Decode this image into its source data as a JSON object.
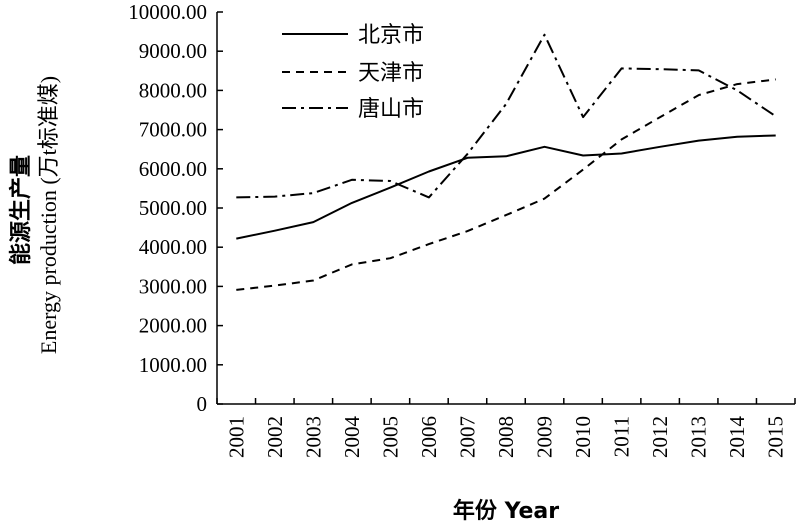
{
  "chart_data": {
    "type": "line",
    "x": [
      "2001",
      "2002",
      "2003",
      "2004",
      "2005",
      "2006",
      "2007",
      "2008",
      "2009",
      "2010",
      "2011",
      "2012",
      "2013",
      "2014",
      "2015"
    ],
    "series": [
      {
        "name": "北京市",
        "style": "solid",
        "values": [
          4220,
          4420,
          4640,
          5130,
          5520,
          5930,
          6280,
          6320,
          6560,
          6340,
          6390,
          6560,
          6720,
          6820,
          6850
        ]
      },
      {
        "name": "天津市",
        "style": "dashed",
        "values": [
          2910,
          3020,
          3150,
          3560,
          3720,
          4080,
          4410,
          4820,
          5240,
          5980,
          6750,
          7320,
          7880,
          8160,
          8280
        ]
      },
      {
        "name": "唐山市",
        "style": "dash-dot",
        "values": [
          5270,
          5290,
          5380,
          5720,
          5690,
          5270,
          6380,
          7650,
          9420,
          7320,
          8560,
          8540,
          8510,
          8000,
          7340
        ]
      }
    ],
    "ylim": [
      0,
      10000
    ],
    "yticks": [
      "0",
      "1000.00",
      "2000.00",
      "3000.00",
      "4000.00",
      "5000.00",
      "6000.00",
      "7000.00",
      "8000.00",
      "9000.00",
      "10000.00"
    ],
    "ylabel_zh": "能源生产量",
    "ylabel_en": "Energy production (万t标准煤)",
    "xlabel": "年份 Year",
    "legend_position": "top-left",
    "grid": false,
    "color": "#000000"
  }
}
